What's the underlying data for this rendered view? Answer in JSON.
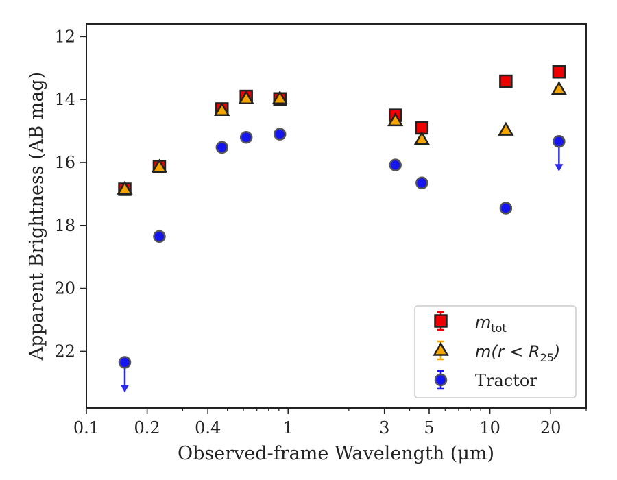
{
  "chart_data": {
    "type": "scatter",
    "xscale": "log",
    "xlim": [
      0.1,
      30
    ],
    "ylim": [
      23.8,
      11.6
    ],
    "y_inverted": true,
    "xlabel": "Observed-frame Wavelength (μm)",
    "ylabel": "Apparent Brightness (AB mag)",
    "x_ticks": [
      {
        "value": 0.1,
        "label": "0.1"
      },
      {
        "value": 0.2,
        "label": "0.2"
      },
      {
        "value": 0.4,
        "label": "0.4"
      },
      {
        "value": 1,
        "label": "1"
      },
      {
        "value": 3,
        "label": "3"
      },
      {
        "value": 5,
        "label": "5"
      },
      {
        "value": 10,
        "label": "10"
      },
      {
        "value": 20,
        "label": "20"
      }
    ],
    "y_ticks": [
      {
        "value": 12,
        "label": "12"
      },
      {
        "value": 14,
        "label": "14"
      },
      {
        "value": 16,
        "label": "16"
      },
      {
        "value": 18,
        "label": "18"
      },
      {
        "value": 20,
        "label": "20"
      },
      {
        "value": 22,
        "label": "22"
      }
    ],
    "legend_position": "lower right",
    "series": [
      {
        "name": "m_tot",
        "legend_label": {
          "main": "m",
          "sub": "tot"
        },
        "marker": "square",
        "color": "#ee0000",
        "x": [
          0.155,
          0.23,
          0.47,
          0.62,
          0.91,
          3.4,
          4.6,
          12.0,
          22.0
        ],
        "y": [
          16.85,
          16.13,
          14.3,
          13.9,
          13.98,
          14.5,
          14.9,
          13.42,
          13.12
        ]
      },
      {
        "name": "m(r<R_25)",
        "legend_label": {
          "main": "m(r < R",
          "sub": "25",
          "close": ")"
        },
        "marker": "triangle",
        "color": "#f5a300",
        "x": [
          0.155,
          0.23,
          0.47,
          0.62,
          0.91,
          3.4,
          4.6,
          12.0,
          22.0
        ],
        "y": [
          16.85,
          16.15,
          14.35,
          13.98,
          13.98,
          14.68,
          15.27,
          14.98,
          13.68
        ]
      },
      {
        "name": "Tractor",
        "legend_label": {
          "main": "Tractor"
        },
        "marker": "circle",
        "color": "#1515ee",
        "x": [
          0.155,
          0.23,
          0.47,
          0.62,
          0.91,
          3.4,
          4.6,
          12.0,
          22.0
        ],
        "y": [
          22.35,
          18.35,
          15.52,
          15.2,
          15.1,
          16.08,
          16.65,
          17.45,
          15.33
        ],
        "upper_limits": [
          true,
          false,
          false,
          false,
          false,
          false,
          false,
          false,
          true
        ]
      }
    ]
  }
}
